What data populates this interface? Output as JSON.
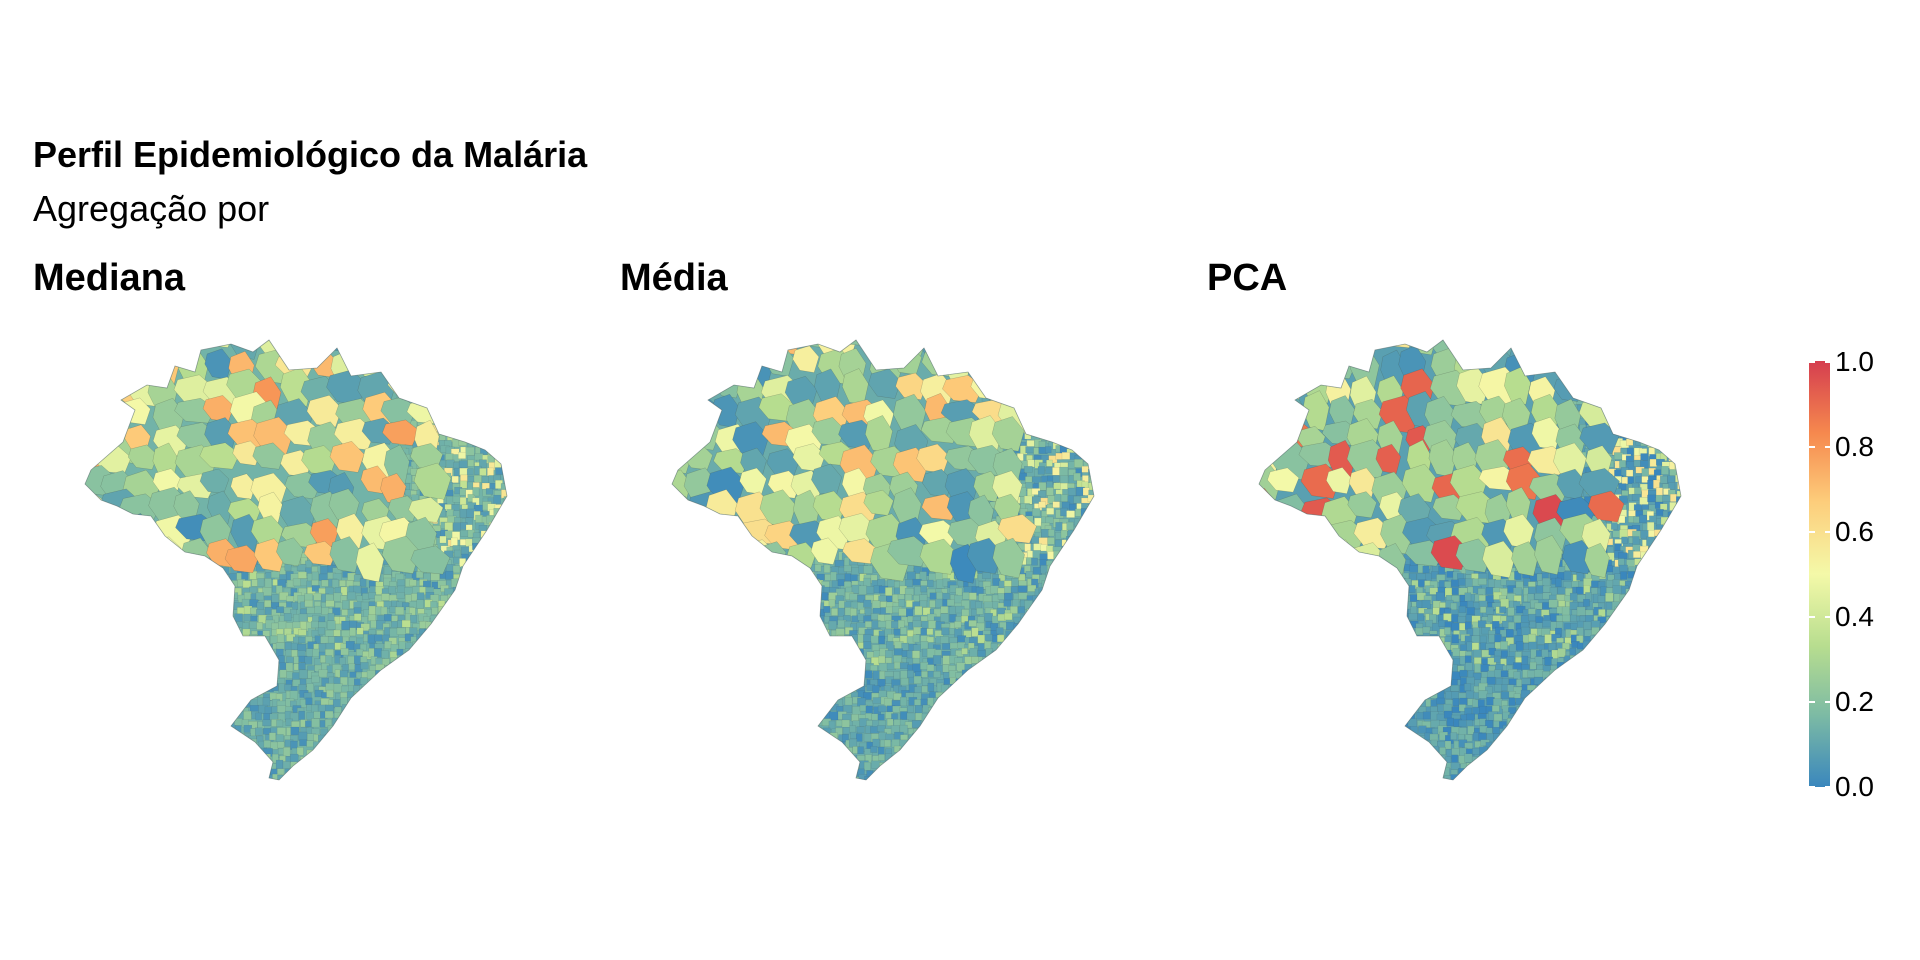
{
  "header": {
    "title": "Perfil Epidemiológico da Malária",
    "subtitle": "Agregação por"
  },
  "panels": [
    {
      "title": "Mediana",
      "hotspot_level": 0.75,
      "south_level": 0.14
    },
    {
      "title": "Média",
      "hotspot_level": 0.68,
      "south_level": 0.12
    },
    {
      "title": "PCA",
      "hotspot_level": 0.95,
      "south_level": 0.08
    }
  ],
  "legend": {
    "ticks": [
      "0.0",
      "0.2",
      "0.4",
      "0.6",
      "0.8",
      "1.0"
    ],
    "range": [
      0.0,
      1.0
    ],
    "palette": [
      "#3a87bd",
      "#7dbba4",
      "#b7dd8f",
      "#f4f9a8",
      "#fdcd7b",
      "#f6894e",
      "#d53e4f"
    ]
  }
}
